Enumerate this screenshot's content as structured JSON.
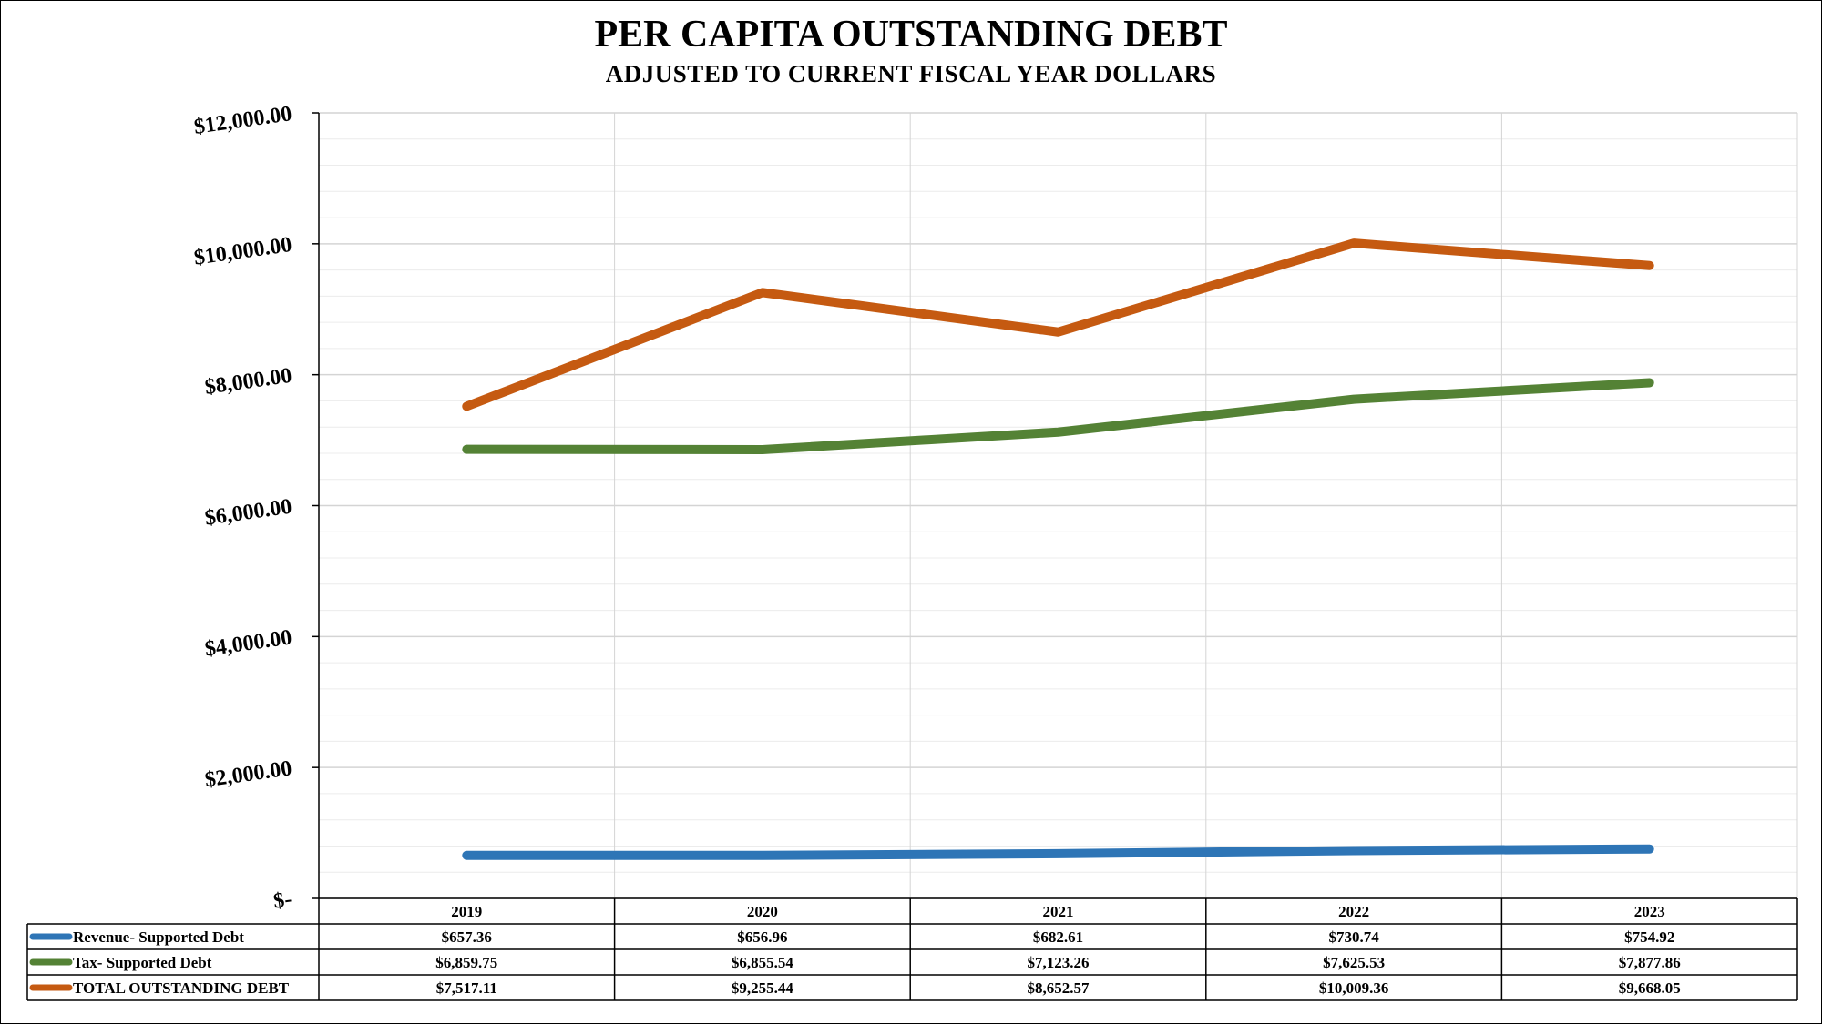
{
  "chart_data": {
    "type": "line",
    "title": "PER CAPITA OUTSTANDING DEBT",
    "subtitle": "ADJUSTED TO CURRENT FISCAL YEAR DOLLARS",
    "categories": [
      "2019",
      "2020",
      "2021",
      "2022",
      "2023"
    ],
    "ylim": [
      0,
      12000
    ],
    "yticks": [
      {
        "value": 0,
        "label": "$-"
      },
      {
        "value": 2000,
        "label": "$2,000.00"
      },
      {
        "value": 4000,
        "label": "$4,000.00"
      },
      {
        "value": 6000,
        "label": "$6,000.00"
      },
      {
        "value": 8000,
        "label": "$8,000.00"
      },
      {
        "value": 10000,
        "label": "$10,000.00"
      },
      {
        "value": 12000,
        "label": "$12,000.00"
      }
    ],
    "grid": true,
    "legend": "data-table-bottom",
    "series": [
      {
        "name": "Revenue- Supported Debt",
        "color": "#2e75b6",
        "values": [
          657.36,
          656.96,
          682.61,
          730.74,
          754.92
        ],
        "labels": [
          "$657.36",
          "$656.96",
          "$682.61",
          "$730.74",
          "$754.92"
        ]
      },
      {
        "name": "Tax- Supported Debt",
        "color": "#548235",
        "values": [
          6859.75,
          6855.54,
          7123.26,
          7625.53,
          7877.86
        ],
        "labels": [
          "$6,859.75",
          "$6,855.54",
          "$7,123.26",
          "$7,625.53",
          "$7,877.86"
        ]
      },
      {
        "name": "TOTAL OUTSTANDING DEBT",
        "color": "#c55a11",
        "values": [
          7517.11,
          9255.44,
          8652.57,
          10009.36,
          9668.05
        ],
        "labels": [
          "$7,517.11",
          "$9,255.44",
          "$8,652.57",
          "$10,009.36",
          "$9,668.05"
        ]
      }
    ]
  }
}
